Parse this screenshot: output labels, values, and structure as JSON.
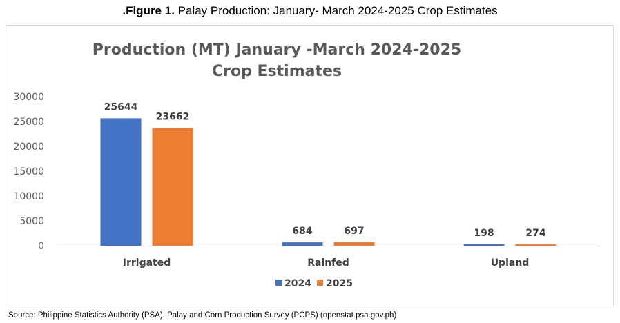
{
  "figure_caption": {
    "prefix": ".Figure 1.",
    "text": " Palay Production: January- March 2024-2025 Crop Estimates"
  },
  "source_note": "Source:  Philippine Statistics Authority (PSA), Palay and Corn Production Survey (PCPS) (openstat.psa.gov.ph)",
  "colors": {
    "2024": "#4472C4",
    "2025": "#ED7D31",
    "text": "#595959",
    "grid": "#d9d9d9"
  },
  "chart_data": {
    "type": "bar",
    "title_lines": [
      "Production (MT) January -March 2024-2025",
      "Crop Estimates"
    ],
    "categories": [
      "Irrigated",
      "Rainfed",
      "Upland"
    ],
    "series": [
      {
        "name": "2024",
        "values": [
          25644,
          684,
          198
        ]
      },
      {
        "name": "2025",
        "values": [
          23662,
          697,
          274
        ]
      }
    ],
    "yticks": [
      0,
      5000,
      10000,
      15000,
      20000,
      25000,
      30000
    ],
    "ylim": [
      0,
      30000
    ],
    "grid": false,
    "legend_position": "bottom",
    "data_labels": true
  }
}
